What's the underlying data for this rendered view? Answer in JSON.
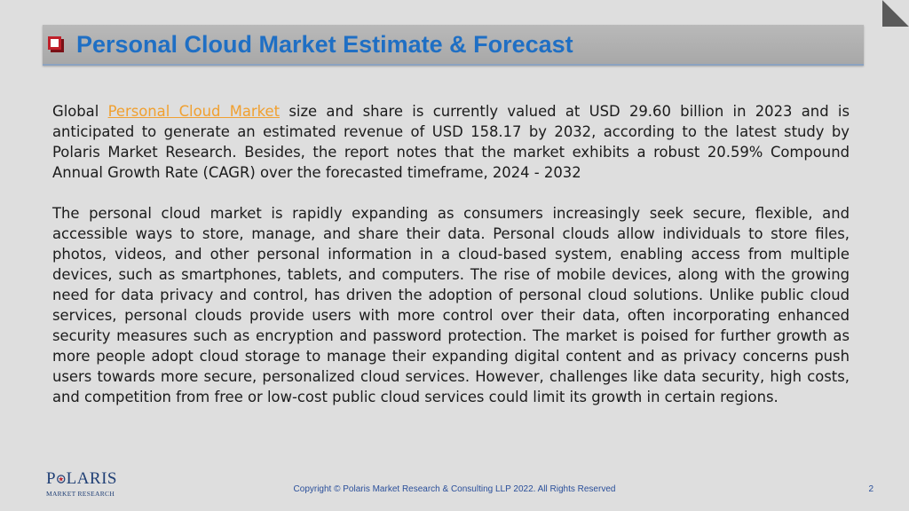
{
  "header": {
    "title": "Personal Cloud Market Estimate & Forecast"
  },
  "content": {
    "p1_before_link": "Global ",
    "p1_link": "Personal Cloud Market",
    "p1_after_link": " size and share is currently valued at USD 29.60 billion in 2023 and is anticipated to generate an estimated revenue of USD 158.17 by 2032, according to the latest study by Polaris Market Research. Besides, the report notes that the market exhibits a robust 20.59% Compound Annual Growth Rate (CAGR) over the forecasted timeframe, 2024 - 2032",
    "p2": "The personal cloud market is rapidly expanding as consumers increasingly seek secure, flexible, and accessible ways to store, manage, and share their data. Personal clouds allow individuals to store files, photos, videos, and other personal information in a cloud-based system, enabling access from multiple devices, such as smartphones, tablets, and computers. The rise of mobile devices, along with the growing need for data privacy and control, has driven the adoption of personal cloud solutions. Unlike public cloud services, personal clouds provide users with more control over their data, often incorporating enhanced security measures such as encryption and password protection. The market is poised for further growth as more people adopt cloud storage to manage their expanding digital content and as privacy concerns push users towards more secure, personalized cloud services. However, challenges like data security, high costs, and competition from free or low-cost public cloud services could limit its growth in certain regions."
  },
  "logo": {
    "p": "P",
    "laris": "LARIS",
    "subtitle": "MARKET RESEARCH"
  },
  "footer": {
    "copyright": "Copyright © Polaris Market Research & Consulting LLP 2022. All Rights Reserved",
    "page_number": "2"
  },
  "colors": {
    "title": "#1f6fc4",
    "link": "#f0a030",
    "bullet": "#c0202a",
    "footer": "#2a4f9a",
    "background": "#dedede"
  }
}
